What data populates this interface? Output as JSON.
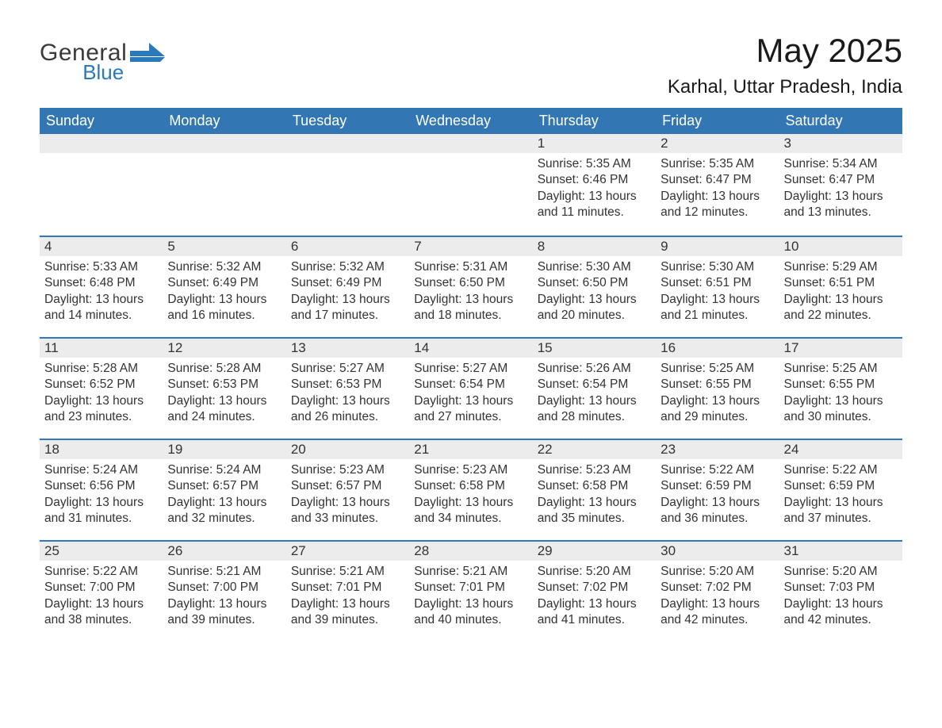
{
  "logo": {
    "general": "General",
    "blue": "Blue"
  },
  "title": "May 2025",
  "subtitle": "Karhal, Uttar Pradesh, India",
  "colors": {
    "header_bg": "#3277b3",
    "header_fg": "#ffffff",
    "day_bar_bg": "#ececec",
    "day_bar_border": "#3277b3",
    "text": "#333333",
    "logo_blue": "#2a7ab9",
    "logo_dark": "#3a3a3a",
    "page_bg": "#ffffff"
  },
  "day_headers": [
    "Sunday",
    "Monday",
    "Tuesday",
    "Wednesday",
    "Thursday",
    "Friday",
    "Saturday"
  ],
  "weeks": [
    [
      null,
      null,
      null,
      null,
      {
        "n": "1",
        "sr": "5:35 AM",
        "ss": "6:46 PM",
        "dl": "13 hours and 11 minutes."
      },
      {
        "n": "2",
        "sr": "5:35 AM",
        "ss": "6:47 PM",
        "dl": "13 hours and 12 minutes."
      },
      {
        "n": "3",
        "sr": "5:34 AM",
        "ss": "6:47 PM",
        "dl": "13 hours and 13 minutes."
      }
    ],
    [
      {
        "n": "4",
        "sr": "5:33 AM",
        "ss": "6:48 PM",
        "dl": "13 hours and 14 minutes."
      },
      {
        "n": "5",
        "sr": "5:32 AM",
        "ss": "6:49 PM",
        "dl": "13 hours and 16 minutes."
      },
      {
        "n": "6",
        "sr": "5:32 AM",
        "ss": "6:49 PM",
        "dl": "13 hours and 17 minutes."
      },
      {
        "n": "7",
        "sr": "5:31 AM",
        "ss": "6:50 PM",
        "dl": "13 hours and 18 minutes."
      },
      {
        "n": "8",
        "sr": "5:30 AM",
        "ss": "6:50 PM",
        "dl": "13 hours and 20 minutes."
      },
      {
        "n": "9",
        "sr": "5:30 AM",
        "ss": "6:51 PM",
        "dl": "13 hours and 21 minutes."
      },
      {
        "n": "10",
        "sr": "5:29 AM",
        "ss": "6:51 PM",
        "dl": "13 hours and 22 minutes."
      }
    ],
    [
      {
        "n": "11",
        "sr": "5:28 AM",
        "ss": "6:52 PM",
        "dl": "13 hours and 23 minutes."
      },
      {
        "n": "12",
        "sr": "5:28 AM",
        "ss": "6:53 PM",
        "dl": "13 hours and 24 minutes."
      },
      {
        "n": "13",
        "sr": "5:27 AM",
        "ss": "6:53 PM",
        "dl": "13 hours and 26 minutes."
      },
      {
        "n": "14",
        "sr": "5:27 AM",
        "ss": "6:54 PM",
        "dl": "13 hours and 27 minutes."
      },
      {
        "n": "15",
        "sr": "5:26 AM",
        "ss": "6:54 PM",
        "dl": "13 hours and 28 minutes."
      },
      {
        "n": "16",
        "sr": "5:25 AM",
        "ss": "6:55 PM",
        "dl": "13 hours and 29 minutes."
      },
      {
        "n": "17",
        "sr": "5:25 AM",
        "ss": "6:55 PM",
        "dl": "13 hours and 30 minutes."
      }
    ],
    [
      {
        "n": "18",
        "sr": "5:24 AM",
        "ss": "6:56 PM",
        "dl": "13 hours and 31 minutes."
      },
      {
        "n": "19",
        "sr": "5:24 AM",
        "ss": "6:57 PM",
        "dl": "13 hours and 32 minutes."
      },
      {
        "n": "20",
        "sr": "5:23 AM",
        "ss": "6:57 PM",
        "dl": "13 hours and 33 minutes."
      },
      {
        "n": "21",
        "sr": "5:23 AM",
        "ss": "6:58 PM",
        "dl": "13 hours and 34 minutes."
      },
      {
        "n": "22",
        "sr": "5:23 AM",
        "ss": "6:58 PM",
        "dl": "13 hours and 35 minutes."
      },
      {
        "n": "23",
        "sr": "5:22 AM",
        "ss": "6:59 PM",
        "dl": "13 hours and 36 minutes."
      },
      {
        "n": "24",
        "sr": "5:22 AM",
        "ss": "6:59 PM",
        "dl": "13 hours and 37 minutes."
      }
    ],
    [
      {
        "n": "25",
        "sr": "5:22 AM",
        "ss": "7:00 PM",
        "dl": "13 hours and 38 minutes."
      },
      {
        "n": "26",
        "sr": "5:21 AM",
        "ss": "7:00 PM",
        "dl": "13 hours and 39 minutes."
      },
      {
        "n": "27",
        "sr": "5:21 AM",
        "ss": "7:01 PM",
        "dl": "13 hours and 39 minutes."
      },
      {
        "n": "28",
        "sr": "5:21 AM",
        "ss": "7:01 PM",
        "dl": "13 hours and 40 minutes."
      },
      {
        "n": "29",
        "sr": "5:20 AM",
        "ss": "7:02 PM",
        "dl": "13 hours and 41 minutes."
      },
      {
        "n": "30",
        "sr": "5:20 AM",
        "ss": "7:02 PM",
        "dl": "13 hours and 42 minutes."
      },
      {
        "n": "31",
        "sr": "5:20 AM",
        "ss": "7:03 PM",
        "dl": "13 hours and 42 minutes."
      }
    ]
  ],
  "labels": {
    "sunrise": "Sunrise: ",
    "sunset": "Sunset: ",
    "daylight": "Daylight: "
  }
}
